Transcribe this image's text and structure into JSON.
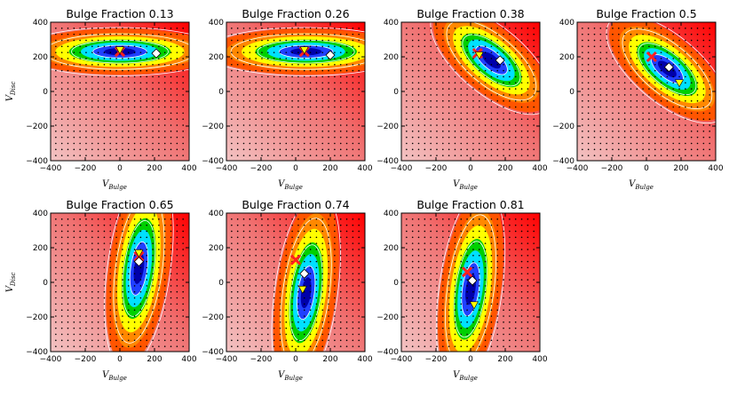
{
  "chart_data": {
    "type": "heatmap",
    "description_axes": {
      "xlabel": "V",
      "xlabel_sub": "Bulge",
      "ylabel": "V",
      "ylabel_sub": "Disc"
    },
    "xlim": [
      -400,
      400
    ],
    "ylim": [
      -400,
      400
    ],
    "xticks": [
      -400,
      -200,
      0,
      200,
      400
    ],
    "yticks": [
      -400,
      -200,
      0,
      200,
      400
    ],
    "colormap": [
      "#f2c3c3",
      "#ff0000",
      "#ff8800",
      "#ffff00",
      "#00d000",
      "#00e0ff",
      "#2040ff",
      "#0000aa"
    ],
    "marker_colors": {
      "cross": "#ff2020",
      "triangle": "#ffff00",
      "diamond": "#ffffff"
    },
    "panels": [
      {
        "title": "Bulge Fraction 0.13",
        "cross": [
          0,
          230
        ],
        "triangle": [
          0,
          240
        ],
        "diamond": [
          210,
          220
        ],
        "peak": [
          0,
          230
        ],
        "elongation": "horizontal"
      },
      {
        "title": "Bulge Fraction 0.26",
        "cross": [
          50,
          230
        ],
        "triangle": [
          50,
          240
        ],
        "diamond": [
          200,
          210
        ],
        "peak": [
          60,
          230
        ],
        "elongation": "horizontal"
      },
      {
        "title": "Bulge Fraction 0.38",
        "cross": [
          40,
          220
        ],
        "triangle": [
          50,
          210
        ],
        "diamond": [
          170,
          180
        ],
        "peak": [
          120,
          180
        ],
        "elongation": "diagonal"
      },
      {
        "title": "Bulge Fraction 0.5",
        "cross": [
          30,
          200
        ],
        "triangle": [
          190,
          50
        ],
        "diamond": [
          130,
          140
        ],
        "peak": [
          120,
          130
        ],
        "elongation": "diagonal"
      },
      {
        "title": "Bulge Fraction 0.65",
        "cross": [
          110,
          150
        ],
        "triangle": [
          110,
          170
        ],
        "diamond": [
          110,
          120
        ],
        "peak": [
          110,
          80
        ],
        "elongation": "vertical"
      },
      {
        "title": "Bulge Fraction 0.74",
        "cross": [
          0,
          130
        ],
        "triangle": [
          40,
          -40
        ],
        "diamond": [
          50,
          50
        ],
        "peak": [
          60,
          -60
        ],
        "elongation": "vertical"
      },
      {
        "title": "Bulge Fraction 0.81",
        "cross": [
          -20,
          60
        ],
        "triangle": [
          20,
          -130
        ],
        "diamond": [
          10,
          10
        ],
        "peak": [
          0,
          -40
        ],
        "elongation": "vertical"
      }
    ]
  }
}
